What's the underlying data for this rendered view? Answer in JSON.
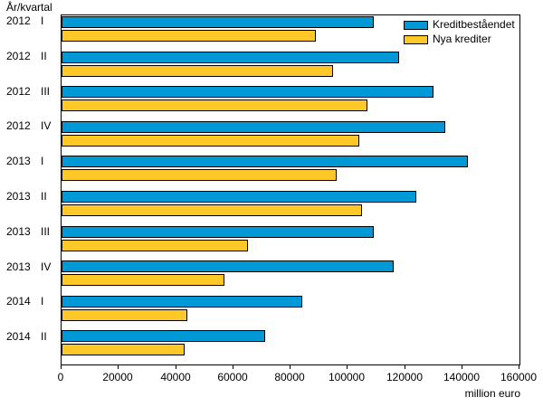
{
  "title": "År/kvartal",
  "xaxis_unit": "million euro",
  "colors": {
    "bar_blue": "#0099D5",
    "bar_yellow": "#FFC829",
    "bar_border": "#000000"
  },
  "chart_data": {
    "type": "bar",
    "orientation": "horizontal",
    "title": "År/kvartal",
    "xlabel": "million euro",
    "ylabel": "",
    "xlim": [
      0,
      160000
    ],
    "xticks": [
      0,
      20000,
      40000,
      60000,
      80000,
      100000,
      120000,
      140000,
      160000
    ],
    "grid": false,
    "legend_position": "top-right-inside",
    "categories": [
      {
        "year": "2012",
        "quarter": "I"
      },
      {
        "year": "2012",
        "quarter": "II"
      },
      {
        "year": "2012",
        "quarter": "III"
      },
      {
        "year": "2012",
        "quarter": "IV"
      },
      {
        "year": "2013",
        "quarter": "I"
      },
      {
        "year": "2013",
        "quarter": "II"
      },
      {
        "year": "2013",
        "quarter": "III"
      },
      {
        "year": "2013",
        "quarter": "IV"
      },
      {
        "year": "2014",
        "quarter": "I"
      },
      {
        "year": "2014",
        "quarter": "II"
      }
    ],
    "series": [
      {
        "name": "Kreditbeståendet",
        "color": "#0099D5",
        "values": [
          109000,
          118000,
          130000,
          134000,
          142000,
          124000,
          109000,
          116000,
          84000,
          71000
        ]
      },
      {
        "name": "Nya krediter",
        "color": "#FFC829",
        "values": [
          89000,
          95000,
          107000,
          104000,
          96000,
          105000,
          65000,
          57000,
          44000,
          43000
        ]
      }
    ]
  }
}
